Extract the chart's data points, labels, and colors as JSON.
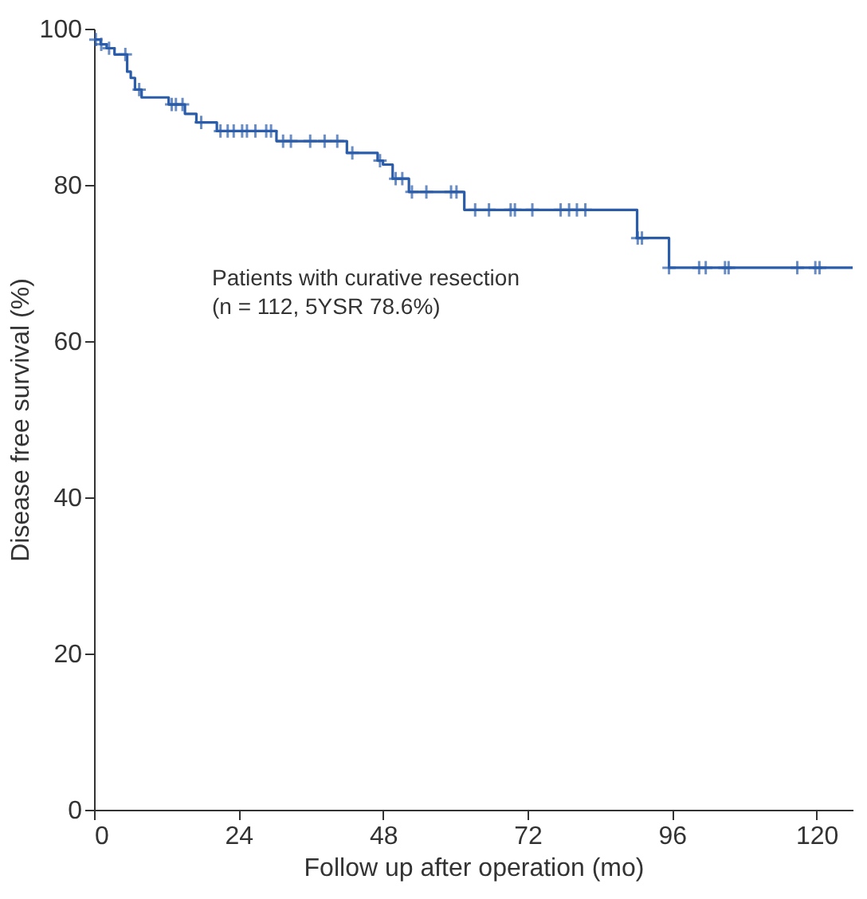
{
  "chart_data": {
    "type": "step",
    "xlabel": "Follow up after operation (mo)",
    "ylabel": "Disease free survival (%)",
    "xlim": [
      0,
      126
    ],
    "ylim": [
      0,
      100
    ],
    "xticks": [
      0,
      24,
      48,
      72,
      96,
      120
    ],
    "yticks": [
      0,
      20,
      40,
      60,
      80,
      100
    ],
    "grid": false,
    "annotations": [
      "Patients with curative resection\n(n = 112, 5YSR 78.6%)"
    ],
    "series": [
      {
        "color": "#2a5caa",
        "line_style": "solid",
        "marker": "none",
        "x": [
          0,
          1.1,
          2.1,
          3.4,
          5.5,
          6.1,
          6.8,
          7.9,
          12.4,
          15.1,
          17,
          20.4,
          30.3,
          42,
          47.1,
          48,
          49.6,
          52.3,
          61.5,
          90.2,
          95.5,
          126
        ],
        "values": [
          98.6,
          98.0,
          97.5,
          96.7,
          94.5,
          93.7,
          92.2,
          91.2,
          90.3,
          89.1,
          88.0,
          86.9,
          85.6,
          84.1,
          83.1,
          82.6,
          80.8,
          79.1,
          76.8,
          73.2,
          69.4,
          69.4
        ]
      },
      {
        "type": "scatter",
        "color": "#2a5caa",
        "marker": "cross",
        "x": [
          0.3,
          1.2,
          2.5,
          5.2,
          7.5,
          12.9,
          13.6,
          14.7,
          17.8,
          21,
          22.2,
          23.2,
          24.6,
          25.4,
          26.8,
          28.6,
          29.4,
          31.4,
          32.7,
          35.9,
          38.3,
          40.4,
          42.9,
          47.5,
          50.1,
          51.2,
          52.8,
          55.2,
          59.3,
          60.2,
          63.3,
          65.6,
          69.2,
          69.9,
          72.8,
          77.5,
          78.9,
          80.2,
          81.6,
          90.3,
          91,
          95.5,
          100.5,
          101.6,
          104.8,
          105.4,
          116.8,
          119.8,
          120.5
        ],
        "values": [
          98.6,
          98.0,
          97.5,
          96.7,
          92.2,
          90.3,
          90.3,
          90.3,
          88.0,
          86.9,
          86.9,
          86.9,
          86.9,
          86.9,
          86.9,
          86.9,
          86.9,
          85.6,
          85.6,
          85.6,
          85.6,
          85.6,
          84.1,
          83.1,
          80.8,
          80.8,
          79.1,
          79.1,
          79.1,
          79.1,
          76.8,
          76.8,
          76.8,
          76.8,
          76.8,
          76.8,
          76.8,
          76.8,
          76.8,
          73.2,
          73.2,
          69.4,
          69.4,
          69.4,
          69.4,
          69.4,
          69.4,
          69.4,
          69.4
        ]
      }
    ]
  }
}
